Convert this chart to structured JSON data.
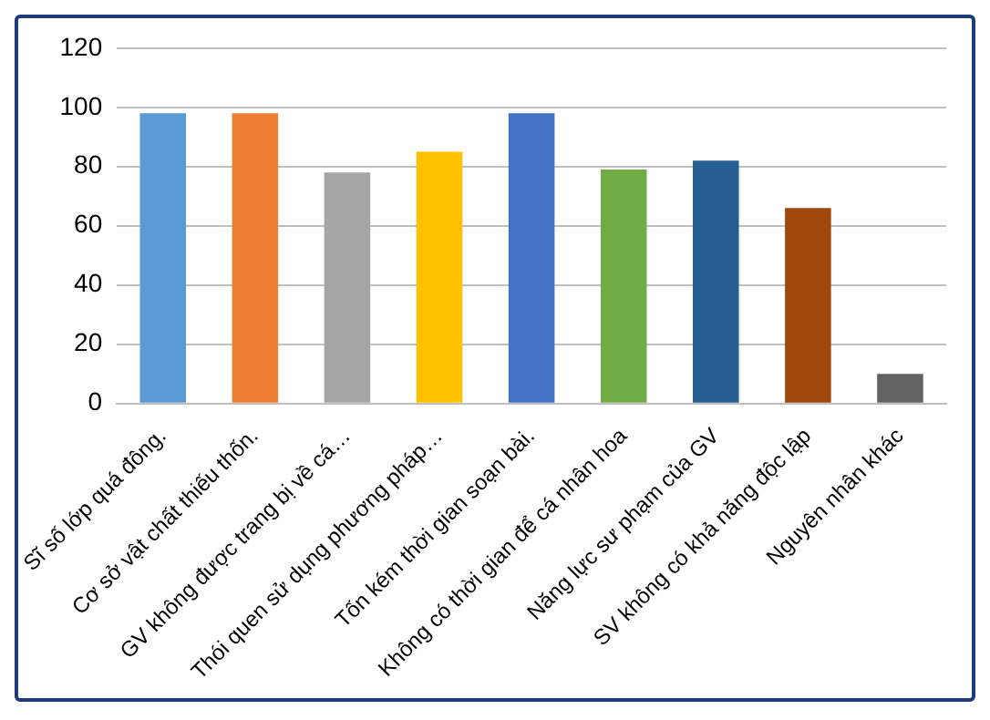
{
  "chart_data": {
    "type": "bar",
    "categories": [
      "Sĩ số lớp quá đông.",
      "Cơ sở vật chất thiếu thốn.",
      "GV không được trang bị về cá…",
      "Thói quen sử dụng phương pháp…",
      "Tốn kém thời gian soạn bài.",
      "Không có thời gian để cá nhân hoa",
      "Năng lực sư phạm của GV",
      "SV không có khả năng độc lập",
      "Nguyên nhân khác"
    ],
    "values": [
      98,
      98,
      78,
      85,
      98,
      79,
      82,
      66,
      10
    ],
    "colors": [
      "#5b9bd5",
      "#ed7d31",
      "#a5a5a5",
      "#ffc000",
      "#4472c4",
      "#70ad47",
      "#255e91",
      "#9e480e",
      "#636363"
    ],
    "ylim": [
      0,
      120
    ],
    "yticks": [
      0,
      20,
      40,
      60,
      80,
      100,
      120
    ],
    "grid": "y",
    "legend": false
  }
}
